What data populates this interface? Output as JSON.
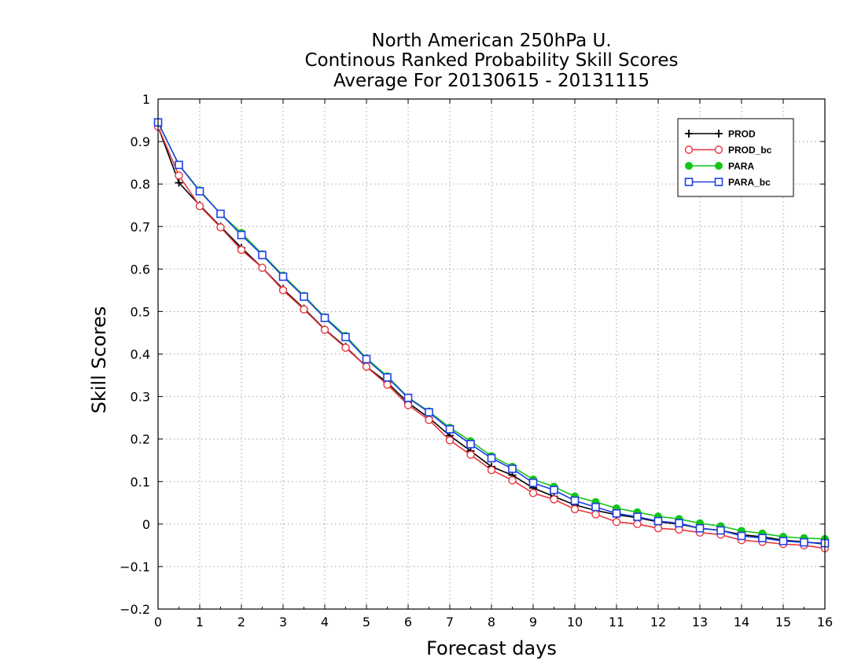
{
  "chart_data": {
    "type": "line",
    "title_lines": [
      "North American 250hPa U.",
      "Continous Ranked Probability Skill Scores",
      "Average For 20130615 - 20131115"
    ],
    "xlabel": "Forecast days",
    "ylabel": "Skill Scores",
    "xlim": [
      0,
      16
    ],
    "ylim": [
      -0.2,
      1
    ],
    "x_ticks": [
      0,
      1,
      2,
      3,
      4,
      5,
      6,
      7,
      8,
      9,
      10,
      11,
      12,
      13,
      14,
      15,
      16
    ],
    "x_tick_labels": [
      "0",
      "1",
      "2",
      "3",
      "4",
      "5",
      "6",
      "7",
      "8",
      "9",
      "10",
      "11",
      "12",
      "13",
      "14",
      "15",
      "16"
    ],
    "y_ticks": [
      -0.2,
      -0.1,
      0,
      0.1,
      0.2,
      0.3,
      0.4,
      0.5,
      0.6,
      0.7,
      0.8,
      0.9,
      1
    ],
    "y_tick_labels": [
      "−0.2",
      "−0.1",
      "0",
      "0.1",
      "0.2",
      "0.3",
      "0.4",
      "0.5",
      "0.6",
      "0.7",
      "0.8",
      "0.9",
      "1"
    ],
    "grid": true,
    "legend_position": "top-right",
    "x": [
      0,
      0.5,
      1,
      1.5,
      2,
      2.5,
      3,
      3.5,
      4,
      4.5,
      5,
      5.5,
      6,
      6.5,
      7,
      7.5,
      8,
      8.5,
      9,
      9.5,
      10,
      10.5,
      11,
      11.5,
      12,
      12.5,
      13,
      13.5,
      14,
      14.5,
      15,
      15.5,
      16
    ],
    "series": [
      {
        "name": "PROD",
        "color": "#000000",
        "marker": "plus",
        "values": [
          0.935,
          0.803,
          0.75,
          0.7,
          0.65,
          0.603,
          0.553,
          0.507,
          0.458,
          0.417,
          0.37,
          0.333,
          0.285,
          0.25,
          0.208,
          0.172,
          0.135,
          0.115,
          0.085,
          0.065,
          0.045,
          0.032,
          0.022,
          0.015,
          0.005,
          0.0,
          -0.01,
          -0.015,
          -0.025,
          -0.03,
          -0.038,
          -0.042,
          -0.047
        ]
      },
      {
        "name": "PROD_bc",
        "color": "#e8363c",
        "marker": "circle-open",
        "values": [
          0.935,
          0.82,
          0.748,
          0.698,
          0.645,
          0.603,
          0.55,
          0.505,
          0.457,
          0.415,
          0.37,
          0.328,
          0.28,
          0.245,
          0.197,
          0.163,
          0.127,
          0.103,
          0.073,
          0.058,
          0.035,
          0.023,
          0.005,
          0.0,
          -0.01,
          -0.013,
          -0.02,
          -0.025,
          -0.038,
          -0.042,
          -0.047,
          -0.05,
          -0.057
        ]
      },
      {
        "name": "PARA",
        "color": "#11c617",
        "marker": "circle-filled",
        "values": [
          0.945,
          0.845,
          0.785,
          0.73,
          0.685,
          0.635,
          0.585,
          0.537,
          0.487,
          0.443,
          0.39,
          0.348,
          0.298,
          0.265,
          0.227,
          0.195,
          0.16,
          0.135,
          0.105,
          0.088,
          0.065,
          0.052,
          0.037,
          0.028,
          0.018,
          0.012,
          0.002,
          -0.005,
          -0.016,
          -0.022,
          -0.03,
          -0.033,
          -0.035
        ]
      },
      {
        "name": "PARA_bc",
        "color": "#1f3fe6",
        "marker": "square-open",
        "values": [
          0.945,
          0.845,
          0.783,
          0.73,
          0.68,
          0.633,
          0.582,
          0.535,
          0.485,
          0.44,
          0.388,
          0.345,
          0.297,
          0.263,
          0.223,
          0.188,
          0.155,
          0.13,
          0.097,
          0.08,
          0.055,
          0.04,
          0.025,
          0.017,
          0.007,
          0.002,
          -0.01,
          -0.015,
          -0.028,
          -0.033,
          -0.04,
          -0.043,
          -0.045
        ]
      }
    ]
  }
}
